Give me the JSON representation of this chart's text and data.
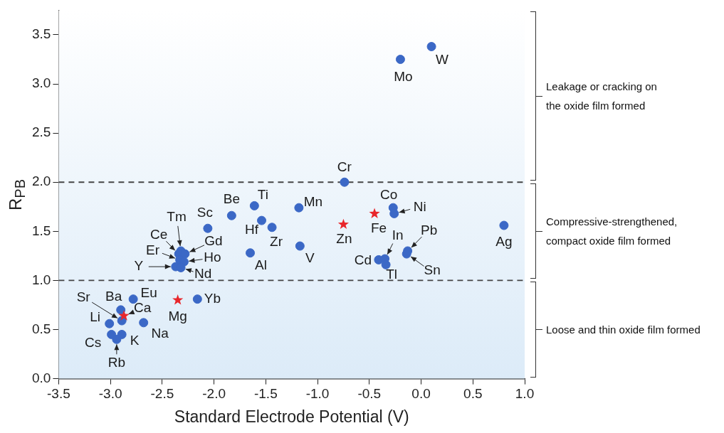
{
  "chart_data": {
    "type": "scatter",
    "xlabel": "Standard Electrode Potential (V)",
    "ylabel": "R$_{PB}$",
    "xlim": [
      -3.5,
      1.0
    ],
    "xticks": [
      -3.5,
      {
        "value": -3,
        "label": "-3.0"
      },
      -2.5,
      {
        "value": -2,
        "label": "-2.0"
      },
      -1.5,
      {
        "value": -1,
        "label": "-1.0"
      },
      -0.5,
      {
        "value": 0,
        "label": "0.0"
      },
      0.5,
      {
        "value": 1,
        "label": "1.0"
      }
    ],
    "ylim": [
      0,
      3.75
    ],
    "yticks": [
      {
        "value": 0,
        "label": "0.0"
      },
      0.5,
      {
        "value": 1,
        "label": "1.0"
      },
      1.5,
      {
        "value": 2,
        "label": "2.0"
      },
      2.5,
      {
        "value": 3,
        "label": "3.0"
      },
      3.5
    ],
    "grid": false,
    "legend": false,
    "series": [
      {
        "color": "#3b68c6",
        "marker": "circle",
        "x": [
          0.1,
          -0.2,
          -0.74,
          -1.18,
          -1.61,
          -1.54,
          -1.44,
          -1.83,
          -2.06,
          -1.65,
          -1.17,
          -0.27,
          -0.26,
          -0.13,
          -0.14,
          -0.41,
          -0.35,
          -0.34,
          0.8,
          -2.32,
          -2.34,
          -2.28,
          -2.33,
          -2.29,
          -2.37,
          -2.32,
          -2.89,
          -2.9,
          -2.78,
          -3.01,
          -2.68,
          -2.99,
          -2.89,
          -2.94,
          -2.16
        ],
        "values": [
          3.38,
          3.25,
          2.0,
          1.74,
          1.76,
          1.61,
          1.54,
          1.66,
          1.53,
          1.28,
          1.35,
          1.74,
          1.68,
          1.3,
          1.27,
          1.21,
          1.22,
          1.16,
          1.56,
          1.3,
          1.27,
          1.27,
          1.21,
          1.19,
          1.14,
          1.13,
          0.59,
          0.7,
          0.81,
          0.56,
          0.57,
          0.45,
          0.45,
          0.4,
          0.81
        ]
      },
      {
        "color": "#e8262b",
        "marker": "star",
        "x": [
          -0.75,
          -0.45,
          -2.35,
          -2.87
        ],
        "values": [
          1.57,
          1.68,
          0.8,
          0.64
        ]
      }
    ],
    "ref_lines": [
      {
        "axis": "y",
        "value": 1.0,
        "color": "#444444",
        "line_style": "dashed"
      },
      {
        "axis": "y",
        "value": 2.0,
        "color": "#444444",
        "line_style": "dashed"
      }
    ],
    "annotations": [
      {
        "text": "W",
        "x": 0.1,
        "y": 3.38
      },
      {
        "text": "Mo",
        "x": -0.2,
        "y": 3.25
      },
      {
        "text": "Cr",
        "x": -0.74,
        "y": 2.0
      },
      {
        "text": "Mn",
        "x": -1.18,
        "y": 1.74
      },
      {
        "text": "Ti",
        "x": -1.61,
        "y": 1.76
      },
      {
        "text": "Hf",
        "x": -1.54,
        "y": 1.61
      },
      {
        "text": "Zr",
        "x": -1.44,
        "y": 1.54
      },
      {
        "text": "Be",
        "x": -1.83,
        "y": 1.66
      },
      {
        "text": "Sc",
        "x": -2.06,
        "y": 1.53
      },
      {
        "text": "Al",
        "x": -1.65,
        "y": 1.28
      },
      {
        "text": "V",
        "x": -1.17,
        "y": 1.35
      },
      {
        "text": "Zn",
        "x": -0.75,
        "y": 1.57
      },
      {
        "text": "Fe",
        "x": -0.45,
        "y": 1.68
      },
      {
        "text": "Co",
        "x": -0.27,
        "y": 1.74
      },
      {
        "text": "Ni",
        "x": -0.26,
        "y": 1.68
      },
      {
        "text": "Pb",
        "x": -0.13,
        "y": 1.3
      },
      {
        "text": "Sn",
        "x": -0.14,
        "y": 1.27
      },
      {
        "text": "Cd",
        "x": -0.41,
        "y": 1.21
      },
      {
        "text": "In",
        "x": -0.35,
        "y": 1.22
      },
      {
        "text": "Tl",
        "x": -0.34,
        "y": 1.16
      },
      {
        "text": "Ag",
        "x": 0.8,
        "y": 1.56
      },
      {
        "text": "Tm",
        "x": -2.32,
        "y": 1.3
      },
      {
        "text": "Ce",
        "x": -2.34,
        "y": 1.27
      },
      {
        "text": "Gd",
        "x": -2.28,
        "y": 1.27
      },
      {
        "text": "Er",
        "x": -2.33,
        "y": 1.21
      },
      {
        "text": "Ho",
        "x": -2.29,
        "y": 1.19
      },
      {
        "text": "Y",
        "x": -2.37,
        "y": 1.14
      },
      {
        "text": "Nd",
        "x": -2.32,
        "y": 1.13
      },
      {
        "text": "Sr",
        "x": -2.89,
        "y": 0.59
      },
      {
        "text": "Ba",
        "x": -2.9,
        "y": 0.7
      },
      {
        "text": "Eu",
        "x": -2.78,
        "y": 0.81
      },
      {
        "text": "Ca",
        "x": -2.87,
        "y": 0.64
      },
      {
        "text": "Li",
        "x": -3.01,
        "y": 0.56
      },
      {
        "text": "Na",
        "x": -2.68,
        "y": 0.57
      },
      {
        "text": "Cs",
        "x": -2.99,
        "y": 0.45
      },
      {
        "text": "K",
        "x": -2.89,
        "y": 0.45
      },
      {
        "text": "Rb",
        "x": -2.94,
        "y": 0.4
      },
      {
        "text": "Mg",
        "x": -2.35,
        "y": 0.8
      },
      {
        "text": "Yb",
        "x": -2.16,
        "y": 0.81
      },
      "Leakage or cracking on the oxide film formed",
      "Compressive-strengthened, compact oxide film formed",
      "Loose and thin oxide film formed"
    ]
  }
}
